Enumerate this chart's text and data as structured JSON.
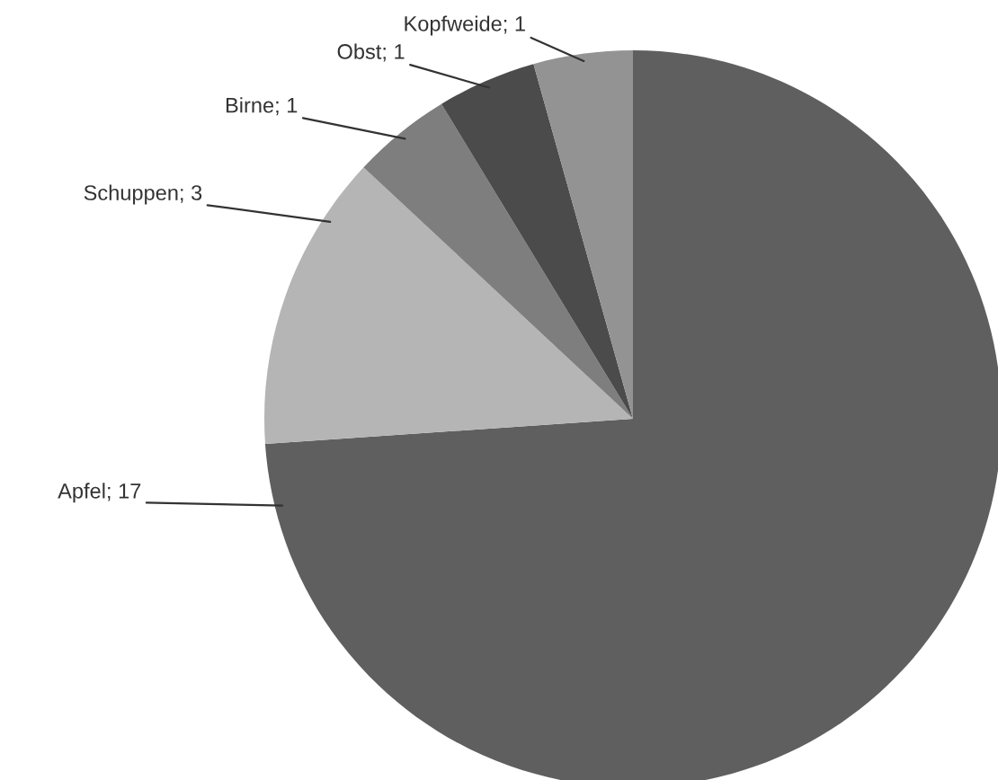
{
  "chart_data": {
    "type": "pie",
    "values": [
      17,
      3,
      1,
      1,
      1
    ],
    "colors": [
      "#5f5f5f",
      "#b5b5b5",
      "#7e7e7e",
      "#4b4b4b",
      "#939393"
    ],
    "value_labels": [
      "Apfel; 17",
      "Schuppen; 3",
      "Birne; 1",
      "Obst; 1",
      "Kopfweide; 1"
    ],
    "legend": false
  }
}
